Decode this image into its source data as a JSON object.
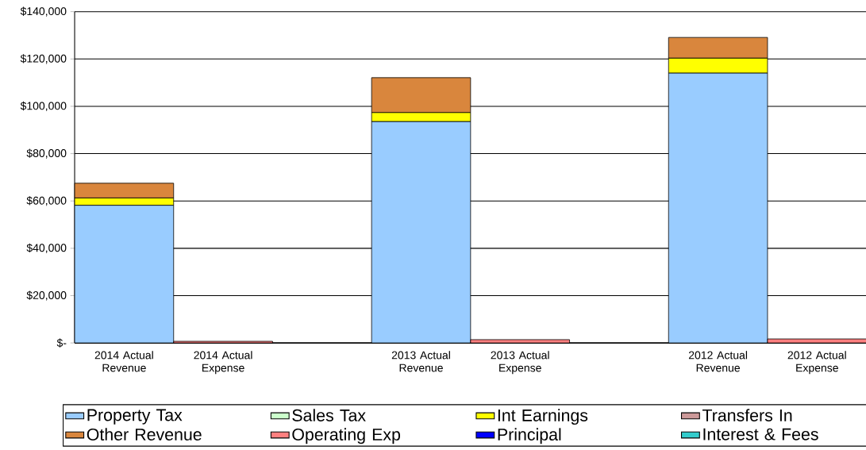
{
  "chart_data": {
    "type": "bar",
    "stacked": true,
    "categories": [
      "2014 Actual Revenue",
      "2014 Actual Expense",
      null,
      "2013 Actual Revenue",
      "2013 Actual Expense",
      null,
      "2012 Actual Revenue",
      "2012 Actual Expense"
    ],
    "series": [
      {
        "name": "Property Tax",
        "color": "#99ccff",
        "values": [
          58200,
          null,
          null,
          93600,
          null,
          null,
          114100,
          null
        ]
      },
      {
        "name": "Sales Tax",
        "color": "#ccffcc",
        "values": [
          null,
          null,
          null,
          null,
          null,
          null,
          null,
          null
        ]
      },
      {
        "name": "Int Earnings",
        "color": "#ffff00",
        "values": [
          3100,
          null,
          null,
          3800,
          null,
          null,
          6300,
          null
        ]
      },
      {
        "name": "Transfers In",
        "color": "#cc9999",
        "values": [
          null,
          null,
          null,
          null,
          null,
          null,
          null,
          null
        ]
      },
      {
        "name": "Other Revenue",
        "color": "#d9863d",
        "values": [
          6200,
          null,
          null,
          14700,
          null,
          null,
          8700,
          null
        ]
      },
      {
        "name": "Operating Exp",
        "color": "#ff8080",
        "values": [
          null,
          700,
          null,
          null,
          1400,
          null,
          null,
          1700
        ]
      },
      {
        "name": "Principal",
        "color": "#0000ff",
        "values": [
          null,
          null,
          null,
          null,
          null,
          null,
          null,
          null
        ]
      },
      {
        "name": "Interest & Fees",
        "color": "#33cccc",
        "values": [
          null,
          null,
          null,
          null,
          null,
          null,
          null,
          null
        ]
      }
    ],
    "ylim": [
      0,
      140000
    ],
    "yticks": [
      {
        "value": 0,
        "label": "$-"
      },
      {
        "value": 20000,
        "label": "$20,000"
      },
      {
        "value": 40000,
        "label": "$40,000"
      },
      {
        "value": 60000,
        "label": "$60,000"
      },
      {
        "value": 80000,
        "label": "$80,000"
      },
      {
        "value": 100000,
        "label": "$100,000"
      },
      {
        "value": 120000,
        "label": "$120,000"
      },
      {
        "value": 140000,
        "label": "$140,000"
      }
    ],
    "grid": "y",
    "legend": "bottom"
  }
}
